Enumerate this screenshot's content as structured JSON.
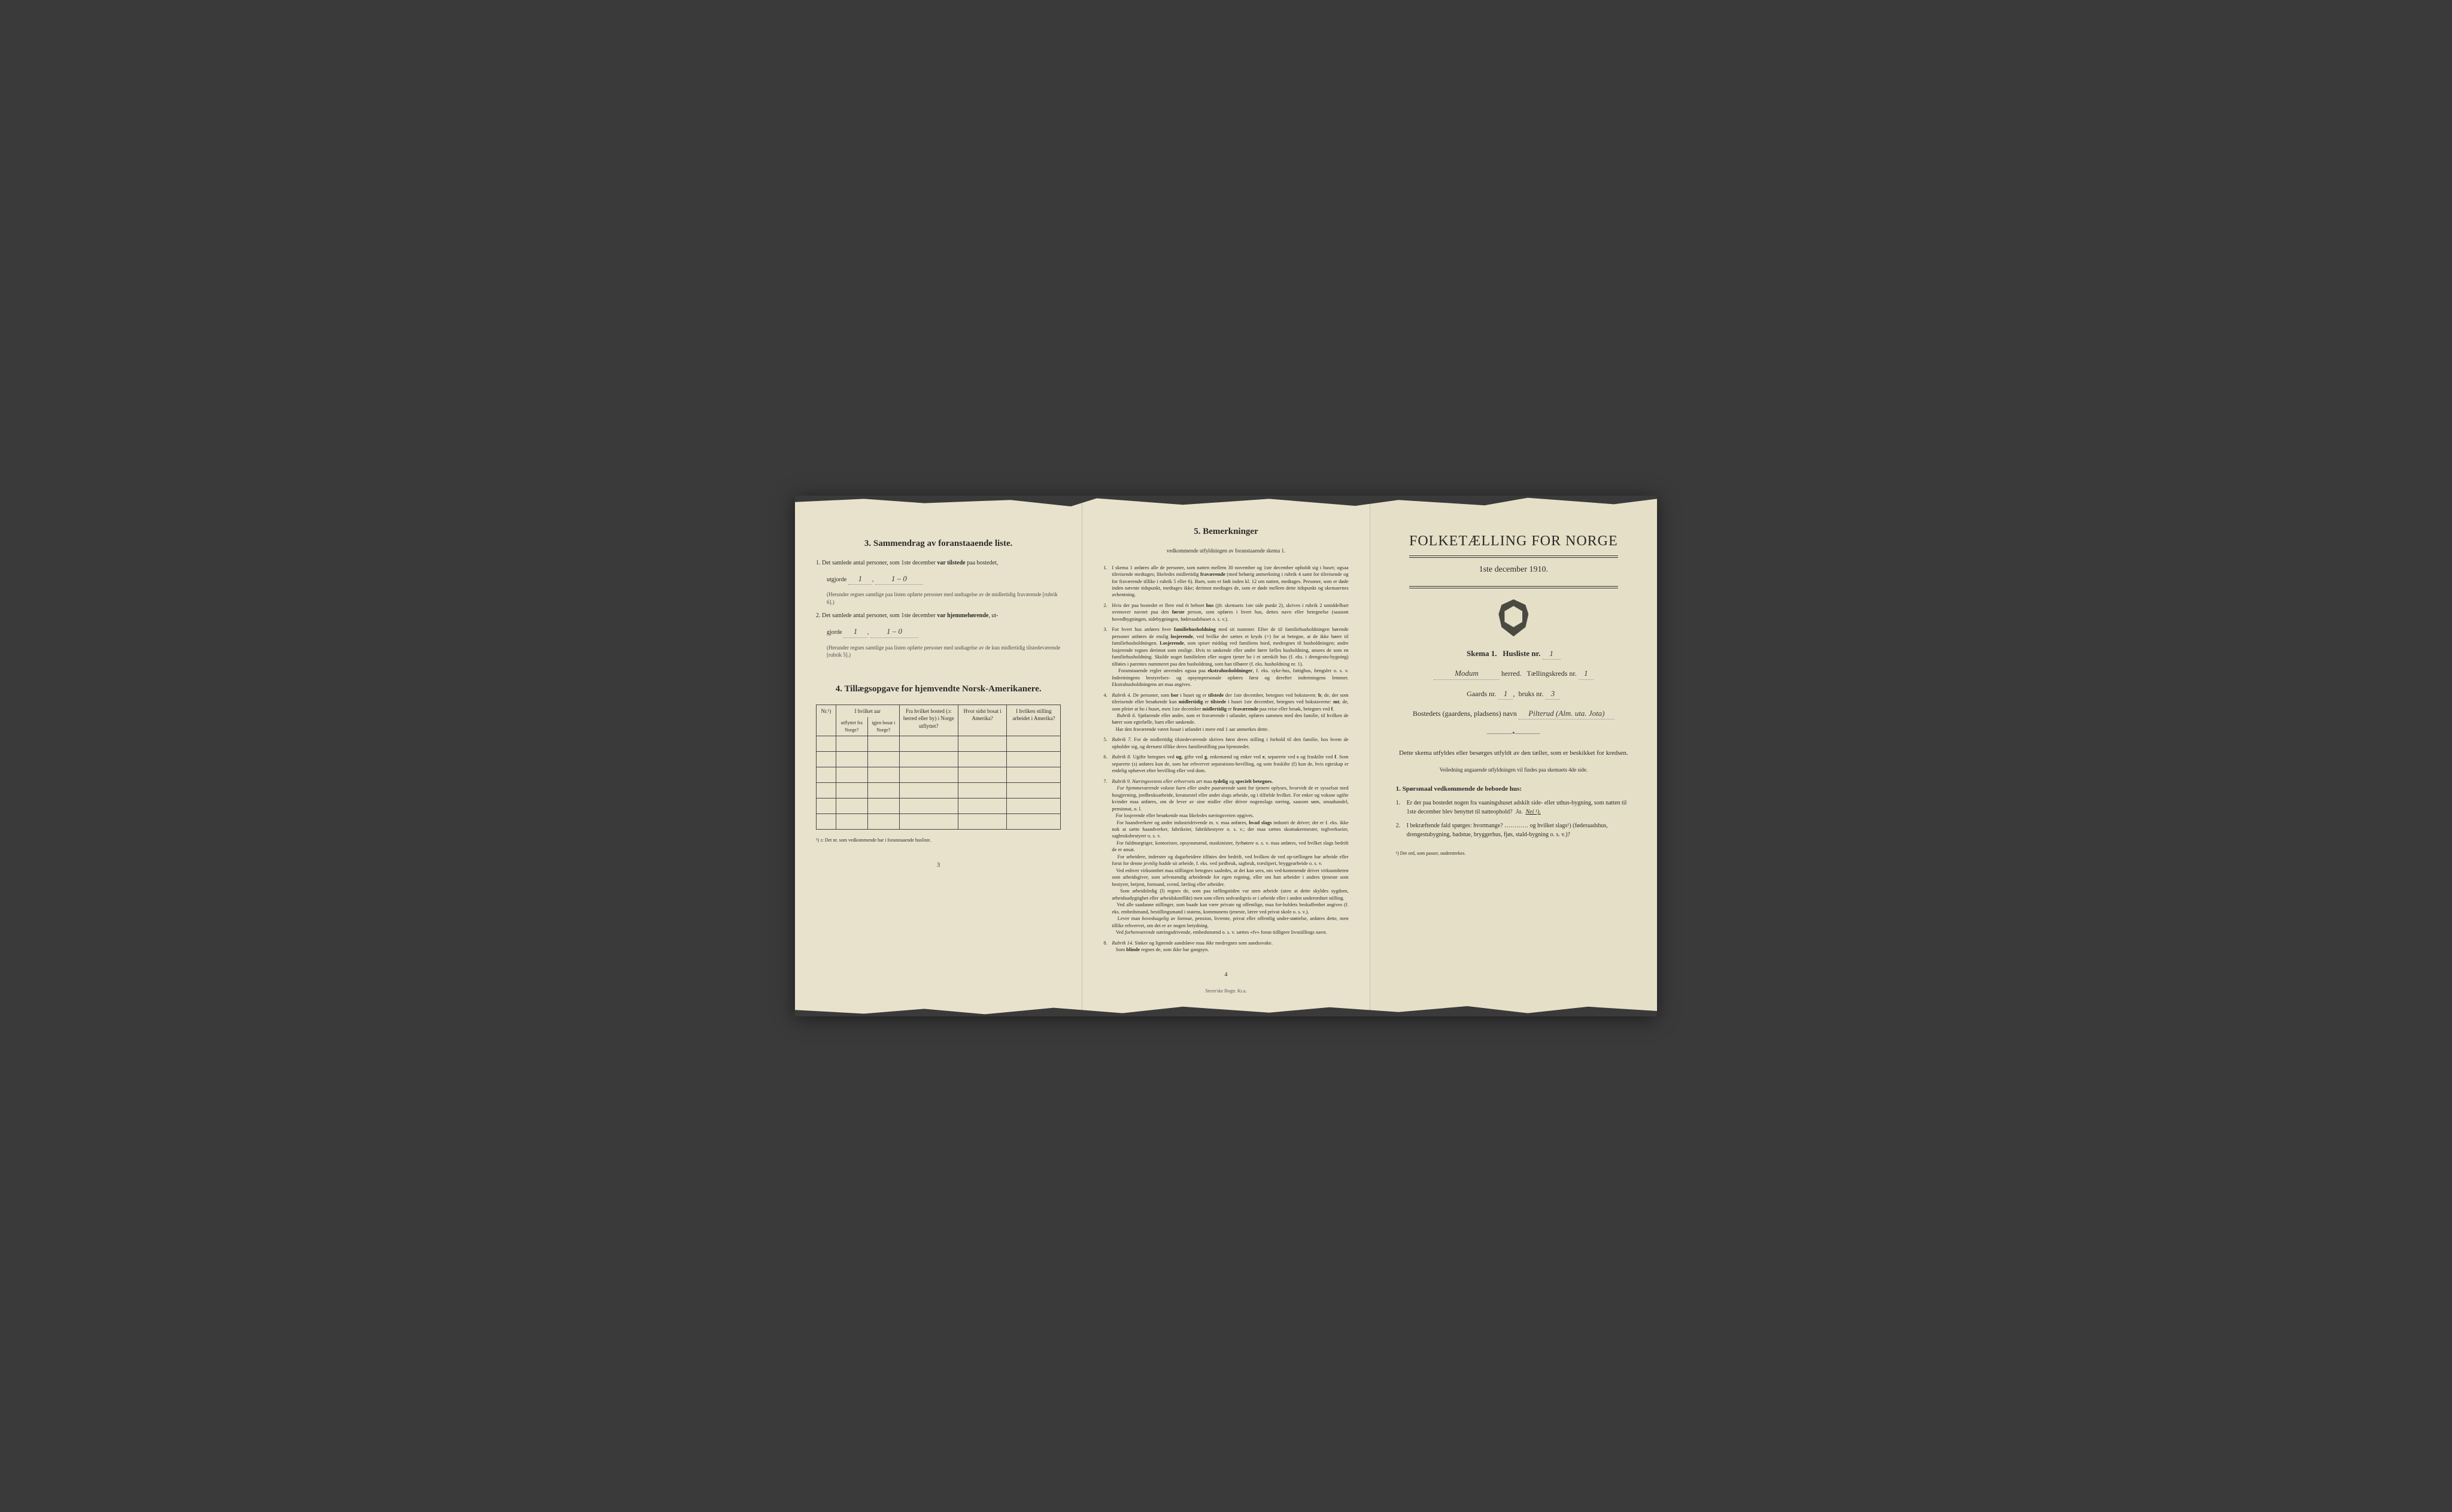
{
  "colors": {
    "paper": "#e8e2cd",
    "paper_right": "#e6dfc8",
    "ink": "#2a2a28",
    "bg": "#3a3a3a",
    "rule": "#444444"
  },
  "left": {
    "section3_title": "3.  Sammendrag av foranstaaende liste.",
    "q1_text_a": "1.  Det samlede antal personer, som 1ste december",
    "q1_bold": "var tilstede",
    "q1_text_b": "paa bostedet,",
    "utgjorde": "utgjorde",
    "q1_val1": "1",
    "q1_val2": "1 – 0",
    "q1_note": "(Herunder regnes samtlige paa listen opførte personer med undtagelse av de midlertidig fraværende [rubrik 6].)",
    "q2_text_a": "2.  Det samlede antal personer, som 1ste december",
    "q2_bold": "var hjemmehørende",
    "q2_text_b": ", ut-",
    "q2_line2": "gjorde",
    "q2_val1": "1",
    "q2_val2": "1 – 0",
    "q2_note": "(Herunder regnes samtlige paa listen opførte personer med undtagelse av de kun midlertidig tilstedeværende [rubrik 5].)",
    "section4_title": "4.  Tillægsopgave for hjemvendte Norsk-Amerikanere.",
    "table": {
      "col_nr": "Nr.¹)",
      "col_group": "I hvilket aar",
      "col_out": "utflyttet fra Norge?",
      "col_back": "igjen bosat i Norge?",
      "col_from": "Fra hvilket bosted (ɔ: herred eller by) i Norge utflyttet?",
      "col_last": "Hvor sidst bosat i Amerika?",
      "col_job": "I hvilken stilling arbeidet i Amerika?",
      "row_count": 6
    },
    "footnote": "¹) ɔ: Det nr. som vedkommende har i foranstaaende husliste.",
    "pagenum": "3"
  },
  "center": {
    "title": "5.  Bemerkninger",
    "subhead": "vedkommende utfyldningen av foranstaaende skema 1.",
    "items": [
      "I skema 1 anføres alle de personer, som natten mellem 30 november og 1ste december opholdt sig i huset; ogsaa tilreisende medtages; likeledes midlertidig <b>fraværende</b> (med behørig anmerkning i rubrik 4 samt for tilreisende og for fraværende tillike i rubrik 5 eller 6). Barn, som er født inden kl. 12 om natten, medtages. Personer, som er døde inden nævnte tidspunkt, medtages ikke; derimot medtages de, som er døde mellem dette tidspunkt og skemaernes avhentning.",
      "Hvis der paa bostedet er flere end ét beboet <b>hus</b> (jfr. skemaets 1ste side punkt 2), skrives i rubrik 2 umiddelbart ovenover navnet paa den <b>første</b> person, som opføres i hvert hus, dettes navn eller betegnelse (saasom hovedbygningen, sidebygningen, føderaadshuset o. s. v.).",
      "For hvert hus anføres hver <b>familiehusholdning</b> med sit nummer. Efter de til familiehusholdningen hørende personer anføres de enslig <b>losjerende</b>, ved hvilke der sættes et kryds (×) for at betegne, at de ikke hører til familiehusholdningen. <b>Losjerende</b>, som spiser middag ved familiens bord, medregnes til husholdningen; andre losjerende regnes derimot som enslige. Hvis to søskende eller andre fører fælles husholdning, ansees de som en familiehusholdning. Skulde noget familielem eller nogen tjener bo i et særskilt hus (f. eks. i drengestu-bygning) tilføies i parentes nummeret paa den husholdning, som han tilhører (f. eks. husholdning nr. 1).<br>&nbsp;&nbsp;&nbsp;Foranstaaende regler anvendes ogsaa paa <b>ekstrahusholdninger</b>, f. eks. syke-hus, fattighus, fængsler o. s. v. Indretningens bestyrelses- og opsynspersonale opføres først og derefter indretningens lemmer. Ekstrahusholdningens art maa angives.",
      "<i>Rubrik 4.</i> De personer, som <b>bor</b> i huset og er <b>tilstede</b> der 1ste december, betegnes ved bokstaven: <b>b</b>; de, der som tilreisende eller besøkende kun <b>midlertidig</b> er <b>tilstede</b> i huset 1ste december, betegnes ved bokstaverne: <b>mt</b>; de, som pleier at bo i huset, men 1ste december <b>midlertidig</b> er <b>fraværende</b> paa reise eller besøk, betegnes ved <b>f</b>.<br>&nbsp;&nbsp;&nbsp;<i>Rubrik 6.</i> Sjøfarende eller andre, som er fraværende i utlandet, opføres sammen med den familie, til hvilken de hører som egtefælle, barn eller søskende.<br>&nbsp;&nbsp;&nbsp;Har den fraværende været <i>bosat</i> i utlandet i mere end 1 aar anmerkes dette.",
      "<i>Rubrik 7.</i> For de midlertidig tilstedeværende skrives først deres stilling i forhold til den familie, hos hvem de opholder sig, og dernæst tillike deres familiestilling paa hjemstedet.",
      "<i>Rubrik 8.</i> Ugifte betegnes ved <b>ug</b>, gifte ved <b>g</b>, enkemænd og enker ved <b>e</b>, separerte ved <b>s</b> og fraskilte ved <b>f</b>. Som separerte (s) anføres kun de, som har erhvervet separations-bevilling, og som fraskilte (f) kun de, hvis egteskap er endelig ophævet efter bevilling eller ved dom.",
      "<i>Rubrik 9.</i> <i>Næringsveiens eller erhvervets art</i> maa <b>tydelig</b> og <b>specielt betegnes.</b><br>&nbsp;&nbsp;&nbsp;<i>For hjemmeværende voksne barn eller andre paarørende</i> samt for tjenere oplyses, hvorvidt de er sysselsat med husgjerning, jordbruksarbeide, kreaturstel eller andet slags arbeide, og i tilfælde hvilket. For enker og voksne ugifte kvinder maa anføres, om de lever av sine midler eller driver nogenslags næring, saasom søm, smaahandel, pensionat, o. l.<br>&nbsp;&nbsp;&nbsp;For losjerende eller besøkende maa likeledes næringsveien opgives.<br>&nbsp;&nbsp;&nbsp;For haandverkere og andre industridrivende m. v. maa anføres, <b>hvad slags</b> industri de driver; det er f. eks. ikke nok at sætte haandverker, fabrikeier, fabrikbestyrer o. s. v.; der maa sættes skomakermester, teglverkseier, sagbruksbestyrer o. s. v.<br>&nbsp;&nbsp;&nbsp;For fuldmægtiger, kontorister, opsynsmænd, maskinister, fyrbøtere o. s. v. maa anføres, ved hvilket slags bedrift de er ansat.<br>&nbsp;&nbsp;&nbsp;For arbeidere, inderster og dagarbeidere tilføies den bedrift, ved hvilken de ved op-tællingen har arbeide eller forut for denne <i>jevnlig hadde</i> sit arbeide, f. eks. ved jordbruk, sagbruk, træsliperi, bryggearbeide o. s. v.<br>&nbsp;&nbsp;&nbsp;Ved enhver virksomhet maa stillingen betegnes saaledes, at det kan sees, om ved-kommende driver virksomheten som arbeidsgiver, som selvstændig arbeidende for egen regning, eller om han arbeider i andres tjeneste som bestyrer, betjent, formand, svend, lærling eller arbeider.<br>&nbsp;&nbsp;&nbsp;Som arbeidsledig (l) regnes de, som paa tællingstiden var uten arbeide (uten at dette skyldes sygdom, arbeidsudygtighet eller arbeidskonflikt) men som ellers sedvanligvis er i arbeide eller i anden underordnet stilling.<br>&nbsp;&nbsp;&nbsp;Ved alle saadanne stillinger, som baade kan være private og offentlige, maa for-holdets beskaffenhet angives (f. eks. embedsmand, bestillingsmand i statens, kommunens tjeneste, lærer ved privat skole o. s. v.).<br>&nbsp;&nbsp;&nbsp;Lever man <i>hovedsagelig</i> av formue, pension, livrente, privat eller offentlig under-støttelse, anføres dette, men tillike erhvervet, om det er av nogen betydning.<br>&nbsp;&nbsp;&nbsp;Ved <i>forhenværende</i> næringsdrivende, embedsmænd o. s. v. sættes «fv» foran tidligere livsstillings navn.",
      "<i>Rubrik 14.</i> Sinker og lignende aandsløve maa <i>ikke</i> medregnes som aandssvake.<br>&nbsp;&nbsp;&nbsp;Som <b>blinde</b> regnes de, som ikke har gangsyn."
    ],
    "pagenum": "4",
    "credit": "Steen'ske Bogtr.  Kr.a."
  },
  "right": {
    "title": "FOLKETÆLLING FOR NORGE",
    "date": "1ste december 1910.",
    "skema_label_a": "Skema 1.",
    "skema_label_b": "Husliste nr.",
    "husliste_nr": "1",
    "herred_val": "Modum",
    "herred_label": "herred.",
    "kreds_label": "Tællingskreds nr.",
    "kreds_val": "1",
    "gaards_label": "Gaards nr.",
    "gaards_val": "1",
    "bruks_label": "bruks nr.",
    "bruks_val": "3",
    "bosted_label": "Bostedets (gaardens, pladsens) navn",
    "bosted_val": "Pilterud (Alm. uta. Jota)",
    "instr": "Dette skema utfyldes eller besørges utfyldt av den tæller, som er beskikket for kredsen.",
    "instr_sub": "Veiledning angaaende utfyldningen vil findes paa skemaets 4de side.",
    "q_lead": "1. Spørsmaal vedkommende de beboede hus:",
    "q1": "Er der paa bostedet nogen fra vaaningshuset adskilt side- eller uthus-bygning, som natten til 1ste december blev benyttet til natteophold?",
    "q1_ja": "Ja.",
    "q1_nei": "Nei ¹).",
    "q2": "I bekræftende fald spørges: hvormange? ………… og hvilket slags¹) (føderaadshus, drengestubygning, badstue, bryggerhus, fjøs, stald-bygning o. s. v.)?",
    "bottom_note": "¹) Det ord, som passer, understrekes."
  }
}
